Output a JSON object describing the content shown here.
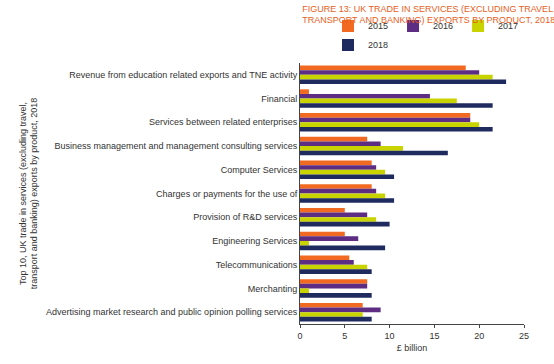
{
  "chart_data": {
    "type": "bar",
    "orientation": "horizontal",
    "title": [
      "FIGURE 13: UK TRADE IN SERVICES (EXCLUDING TRAVEL,",
      "TRANSPORT AND BANKING) EXPORTS BY PRODUCT, 2018"
    ],
    "y_label": [
      "Top 10, UK trade in services (excluding travel,",
      "transport and banking) exports by product, 2018"
    ],
    "x_label": "£ billion",
    "categories": [
      "Revenue from education related exports and TNE activity",
      "Financial",
      "Services between related enterprises",
      "Business management and management consulting services",
      "Computer Services",
      "Charges or payments for the use of",
      "Provision of R&D services",
      "Engineering Services",
      "Telecommunications",
      "Merchanting",
      "Advertising market research and public opinion polling services"
    ],
    "series": [
      {
        "name": "2015",
        "color": "#f26a21",
        "values": [
          18.5,
          1,
          19,
          7.5,
          8,
          8,
          5,
          5,
          5.5,
          7.5,
          7
        ]
      },
      {
        "name": "2016",
        "color": "#5c2d82",
        "values": [
          20,
          14.5,
          19,
          9,
          8.5,
          8.5,
          7.5,
          6.5,
          6,
          7.5,
          9
        ]
      },
      {
        "name": "2017",
        "color": "#c9d300",
        "values": [
          21.5,
          17.5,
          20,
          11.5,
          9.5,
          9.5,
          8.5,
          1,
          7.5,
          1,
          7
        ]
      },
      {
        "name": "2018",
        "color": "#1f2b5e",
        "values": [
          23,
          21.5,
          21.5,
          16.5,
          10.5,
          10.5,
          10,
          9.5,
          8,
          8,
          8
        ]
      }
    ],
    "xlim": [
      0,
      25
    ],
    "xticks": [
      0,
      5,
      10,
      15,
      20,
      25
    ],
    "grid": false,
    "legend": "top right"
  }
}
